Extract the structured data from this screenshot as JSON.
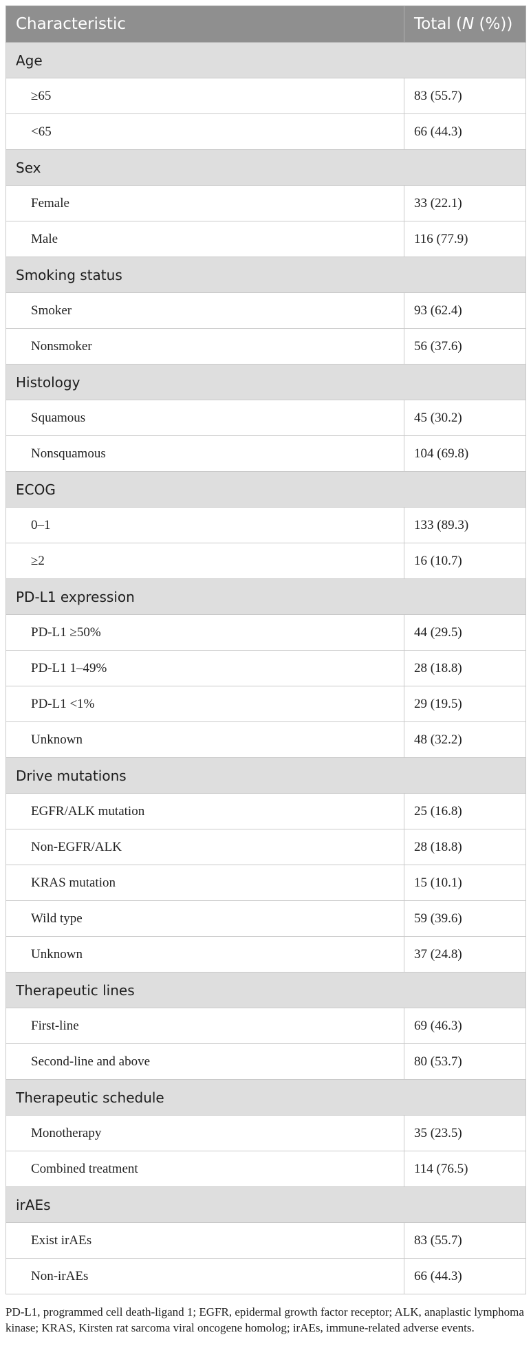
{
  "header": {
    "characteristic": "Characteristic",
    "total_prefix": "Total (",
    "total_n": "N",
    "total_suffix": " (%))"
  },
  "sections": [
    {
      "title": "Age",
      "rows": [
        {
          "label": "≥65",
          "value": "83 (55.7)"
        },
        {
          "label": "<65",
          "value": "66 (44.3)"
        }
      ]
    },
    {
      "title": "Sex",
      "rows": [
        {
          "label": "Female",
          "value": "33 (22.1)"
        },
        {
          "label": "Male",
          "value": "116 (77.9)"
        }
      ]
    },
    {
      "title": "Smoking status",
      "rows": [
        {
          "label": "Smoker",
          "value": "93 (62.4)"
        },
        {
          "label": "Nonsmoker",
          "value": "56 (37.6)"
        }
      ]
    },
    {
      "title": "Histology",
      "rows": [
        {
          "label": "Squamous",
          "value": "45 (30.2)"
        },
        {
          "label": "Nonsquamous",
          "value": "104 (69.8)"
        }
      ]
    },
    {
      "title": "ECOG",
      "rows": [
        {
          "label": "0–1",
          "value": "133 (89.3)"
        },
        {
          "label": "≥2",
          "value": "16 (10.7)"
        }
      ]
    },
    {
      "title": "PD-L1 expression",
      "rows": [
        {
          "label": "PD-L1 ≥50%",
          "value": "44 (29.5)"
        },
        {
          "label": "PD-L1 1–49%",
          "value": "28 (18.8)"
        },
        {
          "label": "PD-L1 <1%",
          "value": "29 (19.5)"
        },
        {
          "label": "Unknown",
          "value": "48 (32.2)"
        }
      ]
    },
    {
      "title": "Drive mutations",
      "rows": [
        {
          "label": "EGFR/ALK mutation",
          "value": "25 (16.8)"
        },
        {
          "label": "Non-EGFR/ALK",
          "value": "28 (18.8)"
        },
        {
          "label": "KRAS mutation",
          "value": "15 (10.1)"
        },
        {
          "label": "Wild type",
          "value": "59 (39.6)"
        },
        {
          "label": "Unknown",
          "value": "37 (24.8)"
        }
      ]
    },
    {
      "title": "Therapeutic lines",
      "rows": [
        {
          "label": "First-line",
          "value": "69 (46.3)"
        },
        {
          "label": "Second-line and above",
          "value": "80 (53.7)"
        }
      ]
    },
    {
      "title": "Therapeutic schedule",
      "rows": [
        {
          "label": "Monotherapy",
          "value": "35 (23.5)"
        },
        {
          "label": "Combined treatment",
          "value": "114 (76.5)"
        }
      ]
    },
    {
      "title": "irAEs",
      "rows": [
        {
          "label": "Exist irAEs",
          "value": "83 (55.7)"
        },
        {
          "label": "Non-irAEs",
          "value": "66 (44.3)"
        }
      ]
    }
  ],
  "footnote": "PD-L1, programmed cell death-ligand 1; EGFR, epidermal growth factor receptor; ALK, anaplastic lymphoma kinase; KRAS, Kirsten rat sarcoma viral oncogene homolog; irAEs, immune-related adverse events.",
  "colors": {
    "header_bg": "#8f8f8f",
    "section_bg": "#dedede",
    "border": "#c9c9c9"
  }
}
